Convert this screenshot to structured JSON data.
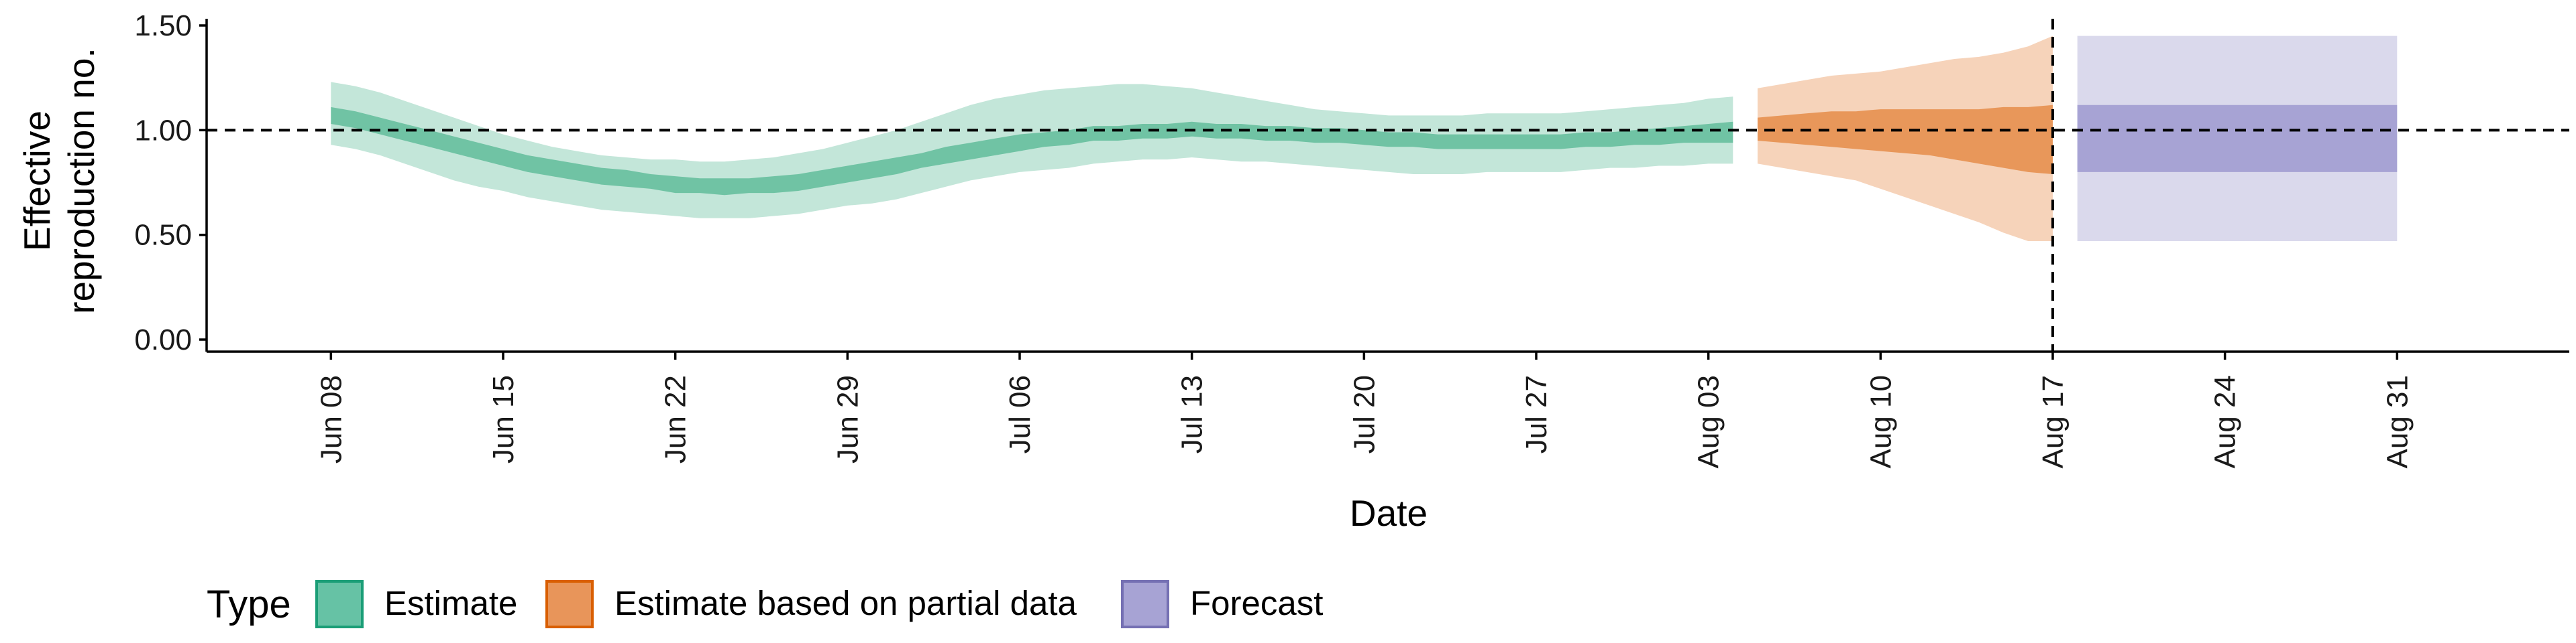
{
  "chart_data": {
    "type": "area",
    "xlabel": "Date",
    "ylabel_lines": [
      "Effective",
      "reproduction no."
    ],
    "ylim": [
      0,
      1.5
    ],
    "yticks": [
      0.0,
      0.5,
      1.0,
      1.5
    ],
    "ytick_labels": [
      "0.00",
      "0.50",
      "1.00",
      "1.50"
    ],
    "xlim": [
      "2020-06-03",
      "2020-09-07"
    ],
    "x_ticks": [
      {
        "date": "2020-06-08",
        "label": "Jun 08"
      },
      {
        "date": "2020-06-15",
        "label": "Jun 15"
      },
      {
        "date": "2020-06-22",
        "label": "Jun 22"
      },
      {
        "date": "2020-06-29",
        "label": "Jun 29"
      },
      {
        "date": "2020-07-06",
        "label": "Jul 06"
      },
      {
        "date": "2020-07-13",
        "label": "Jul 13"
      },
      {
        "date": "2020-07-20",
        "label": "Jul 20"
      },
      {
        "date": "2020-07-27",
        "label": "Jul 27"
      },
      {
        "date": "2020-08-03",
        "label": "Aug 03"
      },
      {
        "date": "2020-08-10",
        "label": "Aug 10"
      },
      {
        "date": "2020-08-17",
        "label": "Aug 17"
      },
      {
        "date": "2020-08-24",
        "label": "Aug 24"
      },
      {
        "date": "2020-08-31",
        "label": "Aug 31"
      }
    ],
    "reference_line": {
      "y": 1.0,
      "style": "dashed"
    },
    "vertical_line": {
      "date": "2020-08-17",
      "style": "dashed"
    },
    "grid": false,
    "legend": {
      "title": "Type",
      "position": "bottom-left",
      "entries": [
        {
          "label": "Estimate",
          "fill": "#66c2a5",
          "border": "#1b9e77"
        },
        {
          "label": "Estimate based on partial data",
          "fill": "#e8955a",
          "border": "#d95f02"
        },
        {
          "label": "Forecast",
          "fill": "#a7a3d4",
          "border": "#7570b3"
        }
      ]
    },
    "series": [
      {
        "name": "Estimate",
        "inner_color": "#70c3a4",
        "outer_color": "#c3e6d9",
        "x": [
          "2020-06-08",
          "2020-06-09",
          "2020-06-10",
          "2020-06-11",
          "2020-06-12",
          "2020-06-13",
          "2020-06-14",
          "2020-06-15",
          "2020-06-16",
          "2020-06-17",
          "2020-06-18",
          "2020-06-19",
          "2020-06-20",
          "2020-06-21",
          "2020-06-22",
          "2020-06-23",
          "2020-06-24",
          "2020-06-25",
          "2020-06-26",
          "2020-06-27",
          "2020-06-28",
          "2020-06-29",
          "2020-06-30",
          "2020-07-01",
          "2020-07-02",
          "2020-07-03",
          "2020-07-04",
          "2020-07-05",
          "2020-07-06",
          "2020-07-07",
          "2020-07-08",
          "2020-07-09",
          "2020-07-10",
          "2020-07-11",
          "2020-07-12",
          "2020-07-13",
          "2020-07-14",
          "2020-07-15",
          "2020-07-16",
          "2020-07-17",
          "2020-07-18",
          "2020-07-19",
          "2020-07-20",
          "2020-07-21",
          "2020-07-22",
          "2020-07-23",
          "2020-07-24",
          "2020-07-25",
          "2020-07-26",
          "2020-07-27",
          "2020-07-28",
          "2020-07-29",
          "2020-07-30",
          "2020-07-31",
          "2020-08-01",
          "2020-08-02",
          "2020-08-03",
          "2020-08-04"
        ],
        "lower_90": [
          0.93,
          0.91,
          0.88,
          0.84,
          0.8,
          0.76,
          0.73,
          0.71,
          0.68,
          0.66,
          0.64,
          0.62,
          0.61,
          0.6,
          0.59,
          0.58,
          0.58,
          0.58,
          0.59,
          0.6,
          0.62,
          0.64,
          0.65,
          0.67,
          0.7,
          0.73,
          0.76,
          0.78,
          0.8,
          0.81,
          0.82,
          0.84,
          0.85,
          0.86,
          0.86,
          0.87,
          0.86,
          0.85,
          0.85,
          0.84,
          0.83,
          0.82,
          0.81,
          0.8,
          0.79,
          0.79,
          0.79,
          0.8,
          0.8,
          0.8,
          0.8,
          0.81,
          0.82,
          0.82,
          0.83,
          0.83,
          0.84,
          0.84
        ],
        "lower_50": [
          1.03,
          1.01,
          0.98,
          0.95,
          0.92,
          0.89,
          0.86,
          0.83,
          0.8,
          0.78,
          0.76,
          0.74,
          0.73,
          0.72,
          0.7,
          0.7,
          0.69,
          0.7,
          0.7,
          0.71,
          0.73,
          0.75,
          0.77,
          0.79,
          0.82,
          0.84,
          0.86,
          0.88,
          0.9,
          0.92,
          0.93,
          0.95,
          0.95,
          0.96,
          0.96,
          0.97,
          0.96,
          0.96,
          0.95,
          0.95,
          0.94,
          0.94,
          0.93,
          0.92,
          0.92,
          0.91,
          0.91,
          0.91,
          0.91,
          0.91,
          0.91,
          0.92,
          0.92,
          0.93,
          0.93,
          0.94,
          0.94,
          0.94
        ],
        "upper_50": [
          1.11,
          1.09,
          1.06,
          1.03,
          1.0,
          0.97,
          0.94,
          0.91,
          0.88,
          0.86,
          0.84,
          0.82,
          0.81,
          0.79,
          0.78,
          0.77,
          0.77,
          0.77,
          0.78,
          0.79,
          0.81,
          0.83,
          0.85,
          0.87,
          0.89,
          0.92,
          0.94,
          0.96,
          0.98,
          0.99,
          1.0,
          1.02,
          1.02,
          1.03,
          1.03,
          1.04,
          1.03,
          1.03,
          1.02,
          1.02,
          1.01,
          1.01,
          1.0,
          0.99,
          0.99,
          0.98,
          0.98,
          0.98,
          0.98,
          0.98,
          0.98,
          0.99,
          0.99,
          1.0,
          1.01,
          1.02,
          1.03,
          1.04
        ],
        "upper_90": [
          1.23,
          1.21,
          1.18,
          1.14,
          1.1,
          1.06,
          1.02,
          0.98,
          0.95,
          0.92,
          0.9,
          0.88,
          0.87,
          0.86,
          0.86,
          0.85,
          0.85,
          0.86,
          0.87,
          0.89,
          0.91,
          0.94,
          0.97,
          1.0,
          1.04,
          1.08,
          1.12,
          1.15,
          1.17,
          1.19,
          1.2,
          1.21,
          1.22,
          1.22,
          1.21,
          1.2,
          1.18,
          1.16,
          1.14,
          1.12,
          1.1,
          1.09,
          1.08,
          1.07,
          1.07,
          1.07,
          1.07,
          1.08,
          1.08,
          1.08,
          1.08,
          1.09,
          1.1,
          1.11,
          1.12,
          1.13,
          1.15,
          1.16
        ]
      },
      {
        "name": "Estimate based on partial data",
        "inner_color": "#e8975a",
        "outer_color": "#f6d3ba",
        "x": [
          "2020-08-05",
          "2020-08-06",
          "2020-08-07",
          "2020-08-08",
          "2020-08-09",
          "2020-08-10",
          "2020-08-11",
          "2020-08-12",
          "2020-08-13",
          "2020-08-14",
          "2020-08-15",
          "2020-08-16",
          "2020-08-17"
        ],
        "lower_90": [
          0.84,
          0.82,
          0.8,
          0.78,
          0.76,
          0.72,
          0.68,
          0.64,
          0.6,
          0.56,
          0.51,
          0.47,
          0.47
        ],
        "lower_50": [
          0.95,
          0.94,
          0.93,
          0.92,
          0.91,
          0.9,
          0.89,
          0.88,
          0.86,
          0.84,
          0.82,
          0.8,
          0.79
        ],
        "upper_50": [
          1.06,
          1.07,
          1.08,
          1.09,
          1.09,
          1.1,
          1.1,
          1.1,
          1.1,
          1.1,
          1.11,
          1.11,
          1.12
        ],
        "upper_90": [
          1.2,
          1.22,
          1.24,
          1.26,
          1.27,
          1.28,
          1.3,
          1.32,
          1.34,
          1.35,
          1.37,
          1.4,
          1.45
        ]
      },
      {
        "name": "Forecast",
        "inner_color": "#a7a3d4",
        "outer_color": "#dad9ec",
        "x": [
          "2020-08-18",
          "2020-08-31"
        ],
        "lower_90": [
          0.47,
          0.47
        ],
        "lower_50": [
          0.8,
          0.8
        ],
        "upper_50": [
          1.12,
          1.12
        ],
        "upper_90": [
          1.45,
          1.45
        ]
      }
    ]
  }
}
